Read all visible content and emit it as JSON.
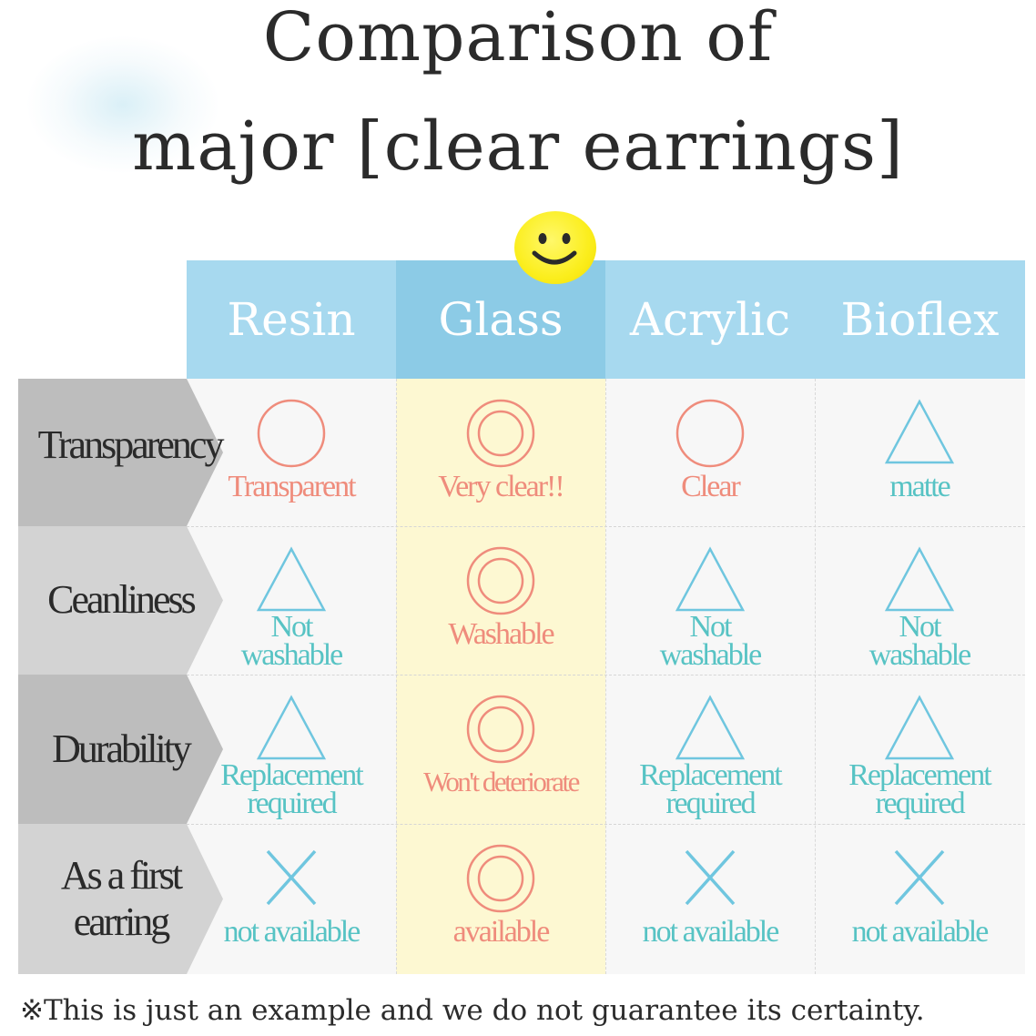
{
  "title": {
    "line1": "Comparison of",
    "line2": "major [clear earrings]"
  },
  "columns": [
    "Resin",
    "Glass",
    "Acrylic",
    "Bioflex"
  ],
  "rows": [
    {
      "label": [
        "Transparency"
      ],
      "cells": [
        {
          "symbol": "circle",
          "text": [
            "Transparent"
          ],
          "tone": "pink"
        },
        {
          "symbol": "double-circle",
          "text": [
            "Very clear!!"
          ],
          "tone": "pink"
        },
        {
          "symbol": "circle",
          "text": [
            "Clear"
          ],
          "tone": "pink"
        },
        {
          "symbol": "triangle",
          "text": [
            "matte"
          ],
          "tone": "blue"
        }
      ]
    },
    {
      "label": [
        "Ceanliness"
      ],
      "cells": [
        {
          "symbol": "triangle",
          "text": [
            "Not",
            "washable"
          ],
          "tone": "blue"
        },
        {
          "symbol": "double-circle",
          "text": [
            "Washable"
          ],
          "tone": "pink"
        },
        {
          "symbol": "triangle",
          "text": [
            "Not",
            "washable"
          ],
          "tone": "blue"
        },
        {
          "symbol": "triangle",
          "text": [
            "Not",
            "washable"
          ],
          "tone": "blue"
        }
      ]
    },
    {
      "label": [
        "Durability"
      ],
      "cells": [
        {
          "symbol": "triangle",
          "text": [
            "Replacement",
            "required"
          ],
          "tone": "blue"
        },
        {
          "symbol": "double-circle",
          "text": [
            "Won't deteriorate"
          ],
          "tone": "pink"
        },
        {
          "symbol": "triangle",
          "text": [
            "Replacement",
            "required"
          ],
          "tone": "blue"
        },
        {
          "symbol": "triangle",
          "text": [
            "Replacement",
            "required"
          ],
          "tone": "blue"
        }
      ]
    },
    {
      "label": [
        "As a first",
        "earring"
      ],
      "cells": [
        {
          "symbol": "cross",
          "text": [
            "not available"
          ],
          "tone": "blue"
        },
        {
          "symbol": "double-circle",
          "text": [
            "available"
          ],
          "tone": "pink"
        },
        {
          "symbol": "cross",
          "text": [
            "not available"
          ],
          "tone": "blue"
        },
        {
          "symbol": "cross",
          "text": [
            "not available"
          ],
          "tone": "blue"
        }
      ]
    }
  ],
  "highlight_column": "Glass",
  "highlight_icon": "smiley-face-icon",
  "footnote": "※This is just an example and we do not guarantee its certainty.",
  "colors": {
    "header": "#a7d9ef",
    "header_highlight": "#8ccbe6",
    "highlight_column_bg": "#fdf8d2",
    "pink": "#ef8c7c",
    "blue": "#57c3c4",
    "row_label_dark": "#bdbdbd",
    "row_label_light": "#d3d3d3"
  }
}
